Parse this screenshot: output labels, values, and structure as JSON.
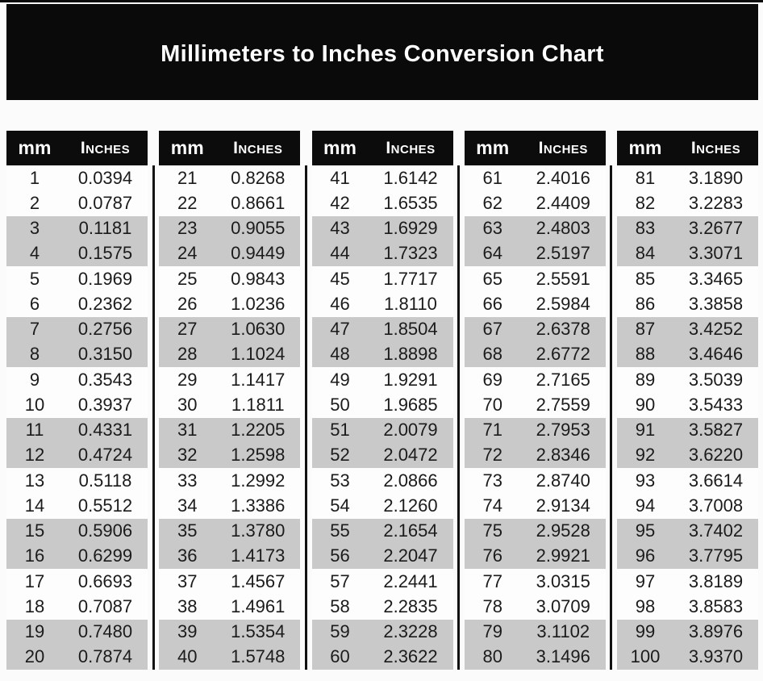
{
  "chart_data": {
    "type": "table",
    "title": "Millimeters to Inches Conversion Chart",
    "column_headers": {
      "mm": "mm",
      "inches": "Inches"
    },
    "layout": {
      "column_groups": 5,
      "rows_per_group": 20,
      "stripe_pattern": "two-white-two-gray"
    },
    "mm": [
      1,
      2,
      3,
      4,
      5,
      6,
      7,
      8,
      9,
      10,
      11,
      12,
      13,
      14,
      15,
      16,
      17,
      18,
      19,
      20,
      21,
      22,
      23,
      24,
      25,
      26,
      27,
      28,
      29,
      30,
      31,
      32,
      33,
      34,
      35,
      36,
      37,
      38,
      39,
      40,
      41,
      42,
      43,
      44,
      45,
      46,
      47,
      48,
      49,
      50,
      51,
      52,
      53,
      54,
      55,
      56,
      57,
      58,
      59,
      60,
      61,
      62,
      63,
      64,
      65,
      66,
      67,
      68,
      69,
      70,
      71,
      72,
      73,
      74,
      75,
      76,
      77,
      78,
      79,
      80,
      81,
      82,
      83,
      84,
      85,
      86,
      87,
      88,
      89,
      90,
      91,
      92,
      93,
      94,
      95,
      96,
      97,
      98,
      99,
      100
    ],
    "inches": [
      "0.0394",
      "0.0787",
      "0.1181",
      "0.1575",
      "0.1969",
      "0.2362",
      "0.2756",
      "0.3150",
      "0.3543",
      "0.3937",
      "0.4331",
      "0.4724",
      "0.5118",
      "0.5512",
      "0.5906",
      "0.6299",
      "0.6693",
      "0.7087",
      "0.7480",
      "0.7874",
      "0.8268",
      "0.8661",
      "0.9055",
      "0.9449",
      "0.9843",
      "1.0236",
      "1.0630",
      "1.1024",
      "1.1417",
      "1.1811",
      "1.2205",
      "1.2598",
      "1.2992",
      "1.3386",
      "1.3780",
      "1.4173",
      "1.4567",
      "1.4961",
      "1.5354",
      "1.5748",
      "1.6142",
      "1.6535",
      "1.6929",
      "1.7323",
      "1.7717",
      "1.8110",
      "1.8504",
      "1.8898",
      "1.9291",
      "1.9685",
      "2.0079",
      "2.0472",
      "2.0866",
      "2.1260",
      "2.1654",
      "2.2047",
      "2.2441",
      "2.2835",
      "2.3228",
      "2.3622",
      "2.4016",
      "2.4409",
      "2.4803",
      "2.5197",
      "2.5591",
      "2.5984",
      "2.6378",
      "2.6772",
      "2.7165",
      "2.7559",
      "2.7953",
      "2.8346",
      "2.8740",
      "2.9134",
      "2.9528",
      "2.9921",
      "3.0315",
      "3.0709",
      "3.1102",
      "3.1496",
      "3.1890",
      "3.2283",
      "3.2677",
      "3.3071",
      "3.3465",
      "3.3858",
      "3.4252",
      "3.4646",
      "3.5039",
      "3.5433",
      "3.5827",
      "3.6220",
      "3.6614",
      "3.7008",
      "3.7402",
      "3.7795",
      "3.8189",
      "3.8583",
      "3.8976",
      "3.9370"
    ]
  },
  "colors": {
    "page_bg": "#fbfbfb",
    "banner_bg": "#0a0a0a",
    "header_bg": "#0c0c0c",
    "stripe_gray": "#c9c9c9",
    "row_white": "#fdfdfd",
    "text": "#1b1b1b",
    "title_text": "#ffffff",
    "divider": "#111111"
  }
}
